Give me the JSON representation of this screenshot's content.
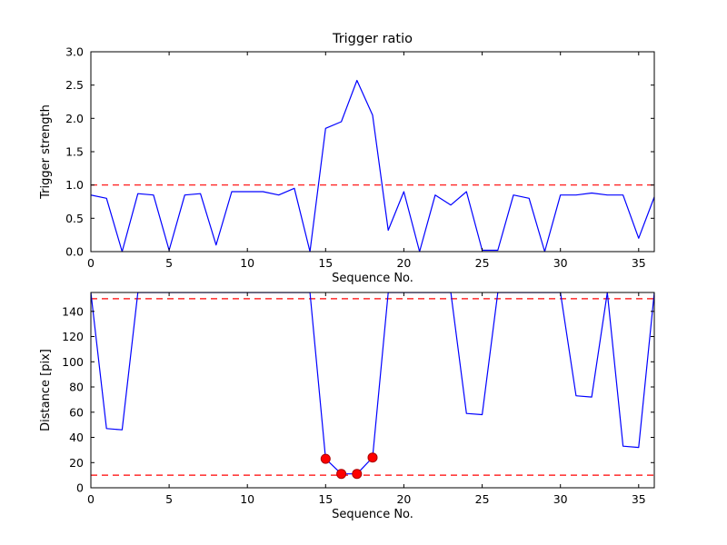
{
  "figure": {
    "background": "#ffffff",
    "line_color": "#0000ff",
    "threshold_color": "#ff0000",
    "marker_color": "#ff0000",
    "marker_edge_color": "#aa0000"
  },
  "chart_data": [
    {
      "type": "line",
      "name": "trigger-ratio-plot",
      "title": "Trigger ratio",
      "xlabel": "Sequence No.",
      "ylabel": "Trigger strength",
      "xlim": [
        0,
        36
      ],
      "ylim": [
        0,
        3
      ],
      "grid": false,
      "legend": "none",
      "xticks": [
        0,
        5,
        10,
        15,
        20,
        25,
        30,
        35
      ],
      "xtick_labels": [
        "0",
        "5",
        "10",
        "15",
        "20",
        "25",
        "30",
        "35"
      ],
      "yticks": [
        0,
        0.5,
        1,
        1.5,
        2,
        2.5,
        3
      ],
      "ytick_labels": [
        "0.0",
        "0.5",
        "1.0",
        "1.5",
        "2.0",
        "2.5",
        "3.0"
      ],
      "series": [
        {
          "name": "trigger-strength",
          "color": "#0000ff",
          "x": [
            0,
            1,
            2,
            3,
            4,
            5,
            6,
            7,
            8,
            9,
            10,
            11,
            12,
            13,
            14,
            15,
            16,
            17,
            18,
            19,
            20,
            21,
            22,
            23,
            24,
            25,
            26,
            27,
            28,
            29,
            30,
            31,
            32,
            33,
            34,
            35,
            36
          ],
          "y": [
            0.85,
            0.8,
            0.0,
            0.87,
            0.85,
            0.02,
            0.85,
            0.87,
            0.1,
            0.9,
            0.9,
            0.9,
            0.85,
            0.95,
            0.0,
            1.85,
            1.95,
            2.57,
            2.05,
            0.32,
            0.9,
            0.0,
            0.85,
            0.7,
            0.9,
            0.02,
            0.02,
            0.85,
            0.8,
            0.0,
            0.85,
            0.85,
            0.88,
            0.85,
            0.85,
            0.2,
            0.82
          ]
        }
      ],
      "hlines": [
        {
          "y": 1.0,
          "color": "#ff0000",
          "style": "dashed"
        }
      ]
    },
    {
      "type": "line",
      "name": "distance-plot",
      "title": "",
      "xlabel": "Sequence No.",
      "ylabel": "Distance [pix]",
      "xlim": [
        0,
        36
      ],
      "ylim": [
        0,
        155
      ],
      "grid": false,
      "legend": "none",
      "xticks": [
        0,
        5,
        10,
        15,
        20,
        25,
        30,
        35
      ],
      "xtick_labels": [
        "0",
        "5",
        "10",
        "15",
        "20",
        "25",
        "30",
        "35"
      ],
      "yticks": [
        0,
        20,
        40,
        60,
        80,
        100,
        120,
        140
      ],
      "ytick_labels": [
        "0",
        "20",
        "40",
        "60",
        "80",
        "100",
        "120",
        "140"
      ],
      "series": [
        {
          "name": "distance",
          "color": "#0000ff",
          "x": [
            0,
            1,
            2,
            3,
            4,
            5,
            6,
            7,
            8,
            9,
            10,
            11,
            12,
            13,
            14,
            15,
            16,
            17,
            18,
            19,
            20,
            21,
            22,
            23,
            24,
            25,
            26,
            27,
            28,
            29,
            30,
            31,
            32,
            33,
            34,
            35,
            36
          ],
          "y": [
            155,
            47,
            46,
            155,
            155,
            155,
            155,
            155,
            155,
            155,
            155,
            155,
            155,
            155,
            155,
            23,
            11,
            11,
            24,
            155,
            155,
            155,
            155,
            155,
            59,
            58,
            155,
            155,
            155,
            155,
            155,
            73,
            72,
            155,
            33,
            32,
            155
          ]
        }
      ],
      "markers": {
        "name": "match-marker",
        "color": "#ff0000",
        "edge_color": "#aa0000",
        "x": [
          15,
          16,
          17,
          18
        ],
        "y": [
          23,
          11,
          11,
          24
        ]
      },
      "hlines": [
        {
          "y": 150,
          "color": "#ff0000",
          "style": "dashed"
        },
        {
          "y": 10,
          "color": "#ff0000",
          "style": "dashed"
        }
      ]
    }
  ]
}
